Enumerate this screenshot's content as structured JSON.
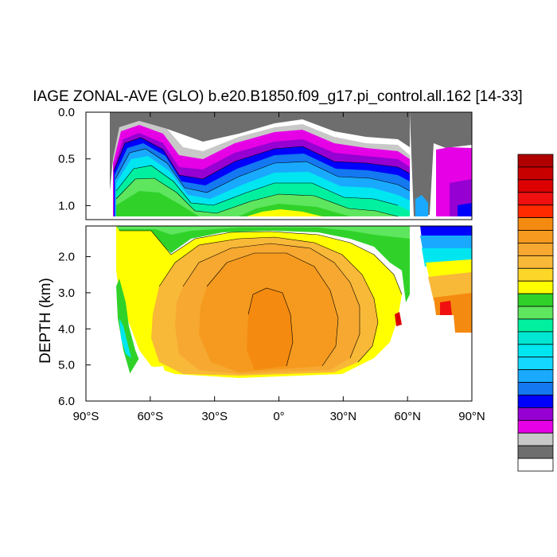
{
  "chart_data": {
    "type": "heatmap",
    "title": "IAGE ZONAL-AVE (GLO) b.e20.B1850.f09_g17.pi_control.all.162 [14-33]",
    "ylabel": "DEPTH (km)",
    "xlabel": "",
    "x_range": [
      -90,
      90
    ],
    "upper_panel": {
      "ylim": [
        0.0,
        1.15
      ],
      "ytick_labels": [
        "0.0",
        "0.5",
        "1.0"
      ],
      "yticks": [
        0.0,
        0.5,
        1.0
      ]
    },
    "lower_panel": {
      "ylim": [
        1.15,
        6.0
      ],
      "ytick_labels": [
        "2.0",
        "3.0",
        "4.0",
        "5.0",
        "6.0"
      ],
      "yticks": [
        2.0,
        3.0,
        4.0,
        5.0,
        6.0
      ]
    },
    "xtick_labels": [
      "90°S",
      "60°S",
      "30°S",
      "0°",
      "30°N",
      "60°N",
      "90°N"
    ],
    "xticks": [
      -90,
      -60,
      -30,
      0,
      30,
      60,
      90
    ],
    "colorbar_colors": [
      "#b00000",
      "#c80000",
      "#dc0000",
      "#f01010",
      "#ff2a00",
      "#f58a10",
      "#f59a1e",
      "#f6a830",
      "#f8b838",
      "#fcd628",
      "#ffff00",
      "#30d22a",
      "#5ee65e",
      "#00f0a0",
      "#00e6d2",
      "#00e6f0",
      "#14d8ff",
      "#19aaff",
      "#1478f0",
      "#0000ff",
      "#9600d2",
      "#e600e6",
      "#c8c8c8",
      "#6e6e6e",
      "#ffffff"
    ],
    "colormap_key": "ncl_age",
    "land_color": "#6e6e6e",
    "background_color": "#ffffff"
  }
}
